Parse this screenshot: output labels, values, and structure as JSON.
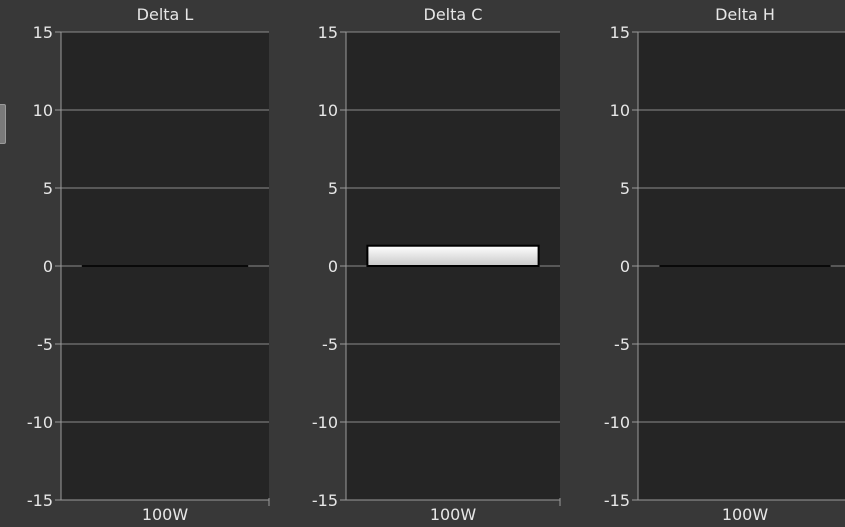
{
  "colors": {
    "background": "#383838",
    "plot_area": "#252525",
    "axis": "#9a9a9a",
    "grid": "#8c8c8c",
    "text": "#e6e6e6",
    "bar_fill_top": "#ffffff",
    "bar_fill_bottom": "#c8c8c8",
    "bar_outline": "#000000"
  },
  "chart_data": [
    {
      "type": "bar",
      "title": "Delta L",
      "categories": [
        "100W"
      ],
      "values": [
        0
      ],
      "ylim": [
        -15,
        15
      ],
      "yticks": [
        "15",
        "10",
        "5",
        "0",
        "-5",
        "-10",
        "-15"
      ],
      "grid": true
    },
    {
      "type": "bar",
      "title": "Delta C",
      "categories": [
        "100W"
      ],
      "values": [
        1.3
      ],
      "ylim": [
        -15,
        15
      ],
      "yticks": [
        "15",
        "10",
        "5",
        "0",
        "-5",
        "-10",
        "-15"
      ],
      "grid": true
    },
    {
      "type": "bar",
      "title": "Delta H",
      "categories": [
        "100W"
      ],
      "values": [
        0
      ],
      "ylim": [
        -15,
        15
      ],
      "yticks": [
        "15",
        "10",
        "5",
        "0",
        "-5",
        "-10",
        "-15"
      ],
      "grid": true
    }
  ]
}
